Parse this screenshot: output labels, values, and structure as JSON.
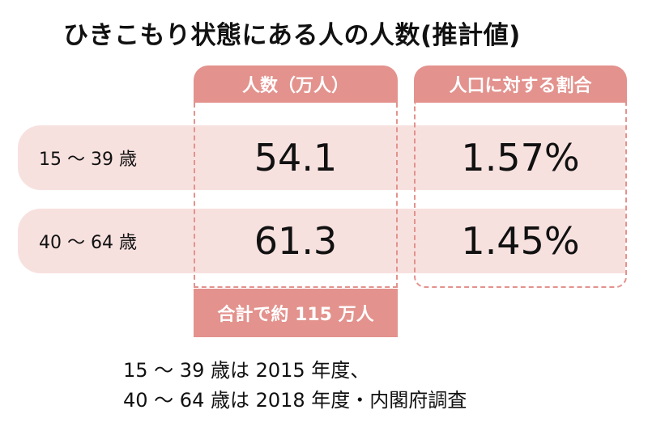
{
  "title": "ひきこもり状態にある人の人数(推計値)",
  "columns": {
    "count_header": "人数（万人）",
    "ratio_header": "人口に対する割合"
  },
  "rows": [
    {
      "age": "15 ～ 39 歳",
      "count": "54.1",
      "ratio": "1.57%"
    },
    {
      "age": "40 ～ 64 歳",
      "count": "61.3",
      "ratio": "1.45%"
    }
  ],
  "total": "合計で約 115 万人",
  "notes": [
    "15 ～ 39 歳は 2015 年度、",
    "40 ～ 64 歳は 2018 年度・内閣府調査"
  ],
  "colors": {
    "accent": "#e3928d",
    "row_band": "#f7e1df",
    "text": "#111111"
  }
}
